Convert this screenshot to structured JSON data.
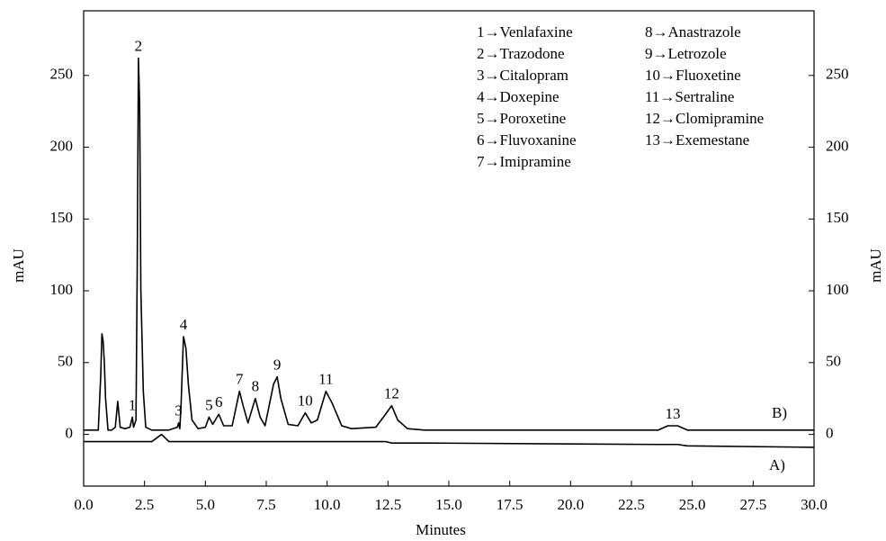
{
  "chart_data": {
    "type": "line",
    "x_label": "Minutes",
    "y_label": "mAU",
    "y2_label": "mAU",
    "x": [
      0.0,
      0.6,
      0.7,
      0.75,
      0.8,
      0.85,
      0.9,
      1.0,
      1.15,
      1.3,
      1.4,
      1.5,
      1.7,
      1.9,
      2.0,
      2.05,
      2.15,
      2.2,
      2.25,
      2.3,
      2.35,
      2.45,
      2.55,
      2.8,
      3.2,
      3.5,
      3.85,
      3.9,
      3.95,
      4.0,
      4.1,
      4.2,
      4.3,
      4.45,
      4.7,
      5.0,
      5.15,
      5.3,
      5.55,
      5.75,
      6.1,
      6.4,
      6.55,
      6.75,
      7.05,
      7.25,
      7.45,
      7.8,
      7.95,
      8.1,
      8.4,
      8.8,
      9.1,
      9.35,
      9.6,
      9.95,
      10.2,
      10.6,
      11.0,
      12.0,
      12.4,
      12.65,
      12.9,
      13.3,
      14.0,
      23.6,
      24.0,
      24.4,
      24.8,
      30.0
    ],
    "series": [
      {
        "name": "B)",
        "color": "#000000",
        "values": [
          3,
          3,
          40,
          70,
          65,
          50,
          25,
          3,
          3,
          5,
          23,
          5,
          4,
          5,
          12,
          5,
          10,
          115,
          262,
          230,
          100,
          30,
          5,
          3,
          3,
          3,
          5,
          8,
          4,
          20,
          68,
          60,
          35,
          10,
          4,
          5,
          12,
          7,
          14,
          6,
          6,
          30,
          20,
          8,
          25,
          12,
          6,
          35,
          40,
          25,
          7,
          6,
          15,
          8,
          10,
          30,
          22,
          6,
          4,
          5,
          14,
          20,
          10,
          4,
          3,
          3,
          6,
          6,
          3,
          3
        ]
      },
      {
        "name": "A)",
        "color": "#000000",
        "values": [
          -5,
          -5,
          -5,
          -5,
          -5,
          -5,
          -5,
          -5,
          -5,
          -5,
          -5,
          -5,
          -5,
          -5,
          -5,
          -5,
          -5,
          -5,
          -5,
          -5,
          -5,
          -5,
          -5,
          -5,
          0,
          -5,
          -5,
          -5,
          -5,
          -5,
          -5,
          -5,
          -5,
          -5,
          -5,
          -5,
          -5,
          -5,
          -5,
          -5,
          -5,
          -5,
          -5,
          -5,
          -5,
          -5,
          -5,
          -5,
          -5,
          -5,
          -5,
          -5,
          -5,
          -5,
          -5,
          -5,
          -5,
          -5,
          -5,
          -5,
          -5,
          -6,
          -6,
          -6,
          -6,
          -7,
          -7,
          -7,
          -8,
          -9
        ]
      }
    ],
    "peaks": [
      {
        "label": "1",
        "x": 2.0
      },
      {
        "label": "2",
        "x": 2.25
      },
      {
        "label": "3",
        "x": 3.9
      },
      {
        "label": "4",
        "x": 4.1
      },
      {
        "label": "5",
        "x": 5.15
      },
      {
        "label": "6",
        "x": 5.55
      },
      {
        "label": "7",
        "x": 6.4
      },
      {
        "label": "8",
        "x": 7.05
      },
      {
        "label": "9",
        "x": 7.95
      },
      {
        "label": "10",
        "x": 9.1
      },
      {
        "label": "11",
        "x": 9.95
      },
      {
        "label": "12",
        "x": 12.65
      },
      {
        "label": "13",
        "x": 24.2
      }
    ],
    "compounds": [
      "1→Venlafaxine",
      "2→Trazodone",
      "3→Citalopram",
      "4→Doxepine",
      "5→Poroxetine",
      "6→Fluvoxanine",
      "7→Imipramine",
      "8→Anastrazole",
      "9→Letrozole",
      "10→Fluoxetine",
      "11→Sertraline",
      "12→Clomipramine",
      "13→Exemestane"
    ],
    "xlim": [
      0,
      30
    ],
    "xticks": [
      {
        "value": 0,
        "label": "0.0"
      },
      {
        "value": 2.5,
        "label": "2.5"
      },
      {
        "value": 5,
        "label": "5.0"
      },
      {
        "value": 7.5,
        "label": "7.5"
      },
      {
        "value": 10,
        "label": "10.0"
      },
      {
        "value": 12.5,
        "label": "12.5"
      },
      {
        "value": 15,
        "label": "15.0"
      },
      {
        "value": 17.5,
        "label": "17.5"
      },
      {
        "value": 20,
        "label": "20.0"
      },
      {
        "value": 22.5,
        "label": "22.5"
      },
      {
        "value": 25,
        "label": "25.0"
      },
      {
        "value": 27.5,
        "label": "27.5"
      },
      {
        "value": 30,
        "label": "30.0"
      }
    ],
    "ylim": [
      -36,
      295
    ],
    "yticks": [
      0,
      50,
      100,
      150,
      200,
      250
    ],
    "y2lim": [
      -36,
      295
    ],
    "y2ticks": [
      0,
      50,
      100,
      150,
      200,
      250
    ],
    "grid": false
  }
}
